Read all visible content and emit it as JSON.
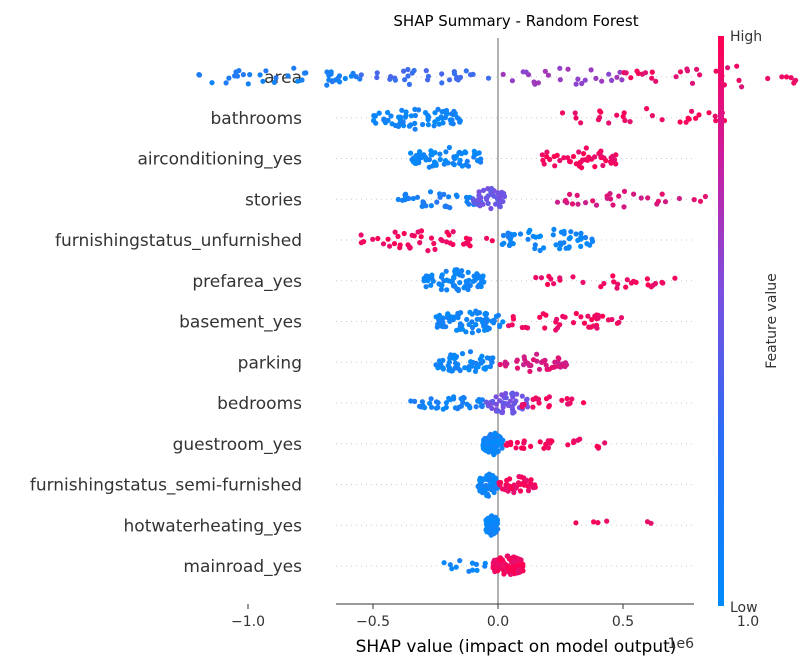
{
  "chart_data": {
    "type": "scatter",
    "subtype": "shap-beeswarm",
    "title": "SHAP Summary - Random Forest",
    "xlabel": "SHAP value (impact on model output)",
    "x_offset_label": "1e6",
    "xlim": [
      -1.3,
      1.55
    ],
    "xticks": [
      {
        "value": -1.0,
        "label": "−1.0"
      },
      {
        "value": -0.5,
        "label": "−0.5"
      },
      {
        "value": 0.0,
        "label": "0.0"
      },
      {
        "value": 0.5,
        "label": "0.5"
      },
      {
        "value": 1.0,
        "label": "1.0"
      },
      {
        "value": 1.5,
        "label": "1.5"
      }
    ],
    "colorbar": {
      "label": "Feature value",
      "high": "High",
      "low": "Low",
      "low_color": "#008bfb",
      "mid_color": "#7b4fe0",
      "high_color": "#ff0052"
    },
    "zero_line_color": "#999999",
    "features": [
      {
        "name": "area",
        "min": -1.2,
        "max": 1.48,
        "clusters": [
          {
            "from": -1.2,
            "to": -0.55,
            "level": 0.1,
            "n": 40,
            "spread": 1.0
          },
          {
            "from": -0.55,
            "to": 0.0,
            "level": 0.25,
            "n": 30,
            "spread": 0.7
          },
          {
            "from": 0.0,
            "to": 0.5,
            "level": 0.6,
            "n": 25,
            "spread": 0.8
          },
          {
            "from": 0.5,
            "to": 1.48,
            "level": 0.92,
            "n": 45,
            "spread": 1.0
          }
        ]
      },
      {
        "name": "bathrooms",
        "min": -0.5,
        "max": 0.95,
        "clusters": [
          {
            "from": -0.5,
            "to": -0.15,
            "level": 0.05,
            "n": 70,
            "spread": 1.0
          },
          {
            "from": 0.25,
            "to": 0.95,
            "level": 0.95,
            "n": 30,
            "spread": 0.8
          }
        ]
      },
      {
        "name": "airconditioning_yes",
        "min": -0.35,
        "max": 0.48,
        "clusters": [
          {
            "from": -0.35,
            "to": -0.05,
            "level": 0.05,
            "n": 60,
            "spread": 1.0
          },
          {
            "from": 0.16,
            "to": 0.48,
            "level": 0.95,
            "n": 45,
            "spread": 1.0
          }
        ]
      },
      {
        "name": "stories",
        "min": -0.4,
        "max": 1.25,
        "clusters": [
          {
            "from": -0.4,
            "to": -0.05,
            "level": 0.1,
            "n": 40,
            "spread": 0.8
          },
          {
            "from": -0.1,
            "to": 0.03,
            "level": 0.45,
            "n": 45,
            "spread": 1.0
          },
          {
            "from": 0.2,
            "to": 0.83,
            "level": 0.85,
            "n": 30,
            "spread": 0.6
          },
          {
            "from": 1.18,
            "to": 1.25,
            "level": 0.95,
            "n": 2,
            "spread": 0.3
          }
        ]
      },
      {
        "name": "furnishingstatus_unfurnished",
        "min": -0.55,
        "max": 0.38,
        "clusters": [
          {
            "from": -0.55,
            "to": -0.02,
            "level": 0.95,
            "n": 45,
            "spread": 0.9
          },
          {
            "from": 0.0,
            "to": 0.38,
            "level": 0.05,
            "n": 55,
            "spread": 1.0
          }
        ]
      },
      {
        "name": "prefarea_yes",
        "min": -0.3,
        "max": 0.72,
        "clusters": [
          {
            "from": -0.3,
            "to": -0.05,
            "level": 0.05,
            "n": 70,
            "spread": 1.0
          },
          {
            "from": 0.15,
            "to": 0.72,
            "level": 0.95,
            "n": 30,
            "spread": 0.7
          }
        ]
      },
      {
        "name": "basement_yes",
        "min": -0.25,
        "max": 0.5,
        "clusters": [
          {
            "from": -0.25,
            "to": 0.02,
            "level": 0.05,
            "n": 75,
            "spread": 1.0
          },
          {
            "from": 0.02,
            "to": 0.5,
            "level": 0.95,
            "n": 40,
            "spread": 0.8
          }
        ]
      },
      {
        "name": "parking",
        "min": -0.25,
        "max": 0.28,
        "clusters": [
          {
            "from": -0.25,
            "to": -0.02,
            "level": 0.05,
            "n": 60,
            "spread": 1.0
          },
          {
            "from": 0.0,
            "to": 0.28,
            "level": 0.85,
            "n": 40,
            "spread": 0.8
          }
        ]
      },
      {
        "name": "bedrooms",
        "min": -0.35,
        "max": 0.35,
        "clusters": [
          {
            "from": -0.35,
            "to": -0.05,
            "level": 0.08,
            "n": 40,
            "spread": 0.5
          },
          {
            "from": -0.05,
            "to": 0.12,
            "level": 0.45,
            "n": 50,
            "spread": 1.0
          },
          {
            "from": 0.05,
            "to": 0.35,
            "level": 0.95,
            "n": 20,
            "spread": 0.5
          }
        ]
      },
      {
        "name": "guestroom_yes",
        "min": -0.06,
        "max": 0.45,
        "clusters": [
          {
            "from": -0.06,
            "to": 0.02,
            "level": 0.05,
            "n": 80,
            "spread": 1.0
          },
          {
            "from": 0.02,
            "to": 0.45,
            "level": 0.95,
            "n": 30,
            "spread": 0.5
          }
        ]
      },
      {
        "name": "furnishingstatus_semi-furnished",
        "min": -0.08,
        "max": 0.15,
        "clusters": [
          {
            "from": -0.08,
            "to": 0.0,
            "level": 0.05,
            "n": 80,
            "spread": 1.0
          },
          {
            "from": 0.0,
            "to": 0.15,
            "level": 0.95,
            "n": 40,
            "spread": 0.7
          }
        ]
      },
      {
        "name": "hotwaterheating_yes",
        "min": -0.05,
        "max": 0.78,
        "clusters": [
          {
            "from": -0.05,
            "to": 0.0,
            "level": 0.05,
            "n": 70,
            "spread": 1.0
          },
          {
            "from": 0.28,
            "to": 0.78,
            "level": 0.95,
            "n": 6,
            "spread": 0.3
          }
        ]
      },
      {
        "name": "mainroad_yes",
        "min": -0.22,
        "max": 0.1,
        "clusters": [
          {
            "from": -0.22,
            "to": -0.05,
            "level": 0.05,
            "n": 12,
            "spread": 0.4
          },
          {
            "from": -0.02,
            "to": 0.1,
            "level": 0.95,
            "n": 90,
            "spread": 1.0
          }
        ]
      }
    ]
  }
}
